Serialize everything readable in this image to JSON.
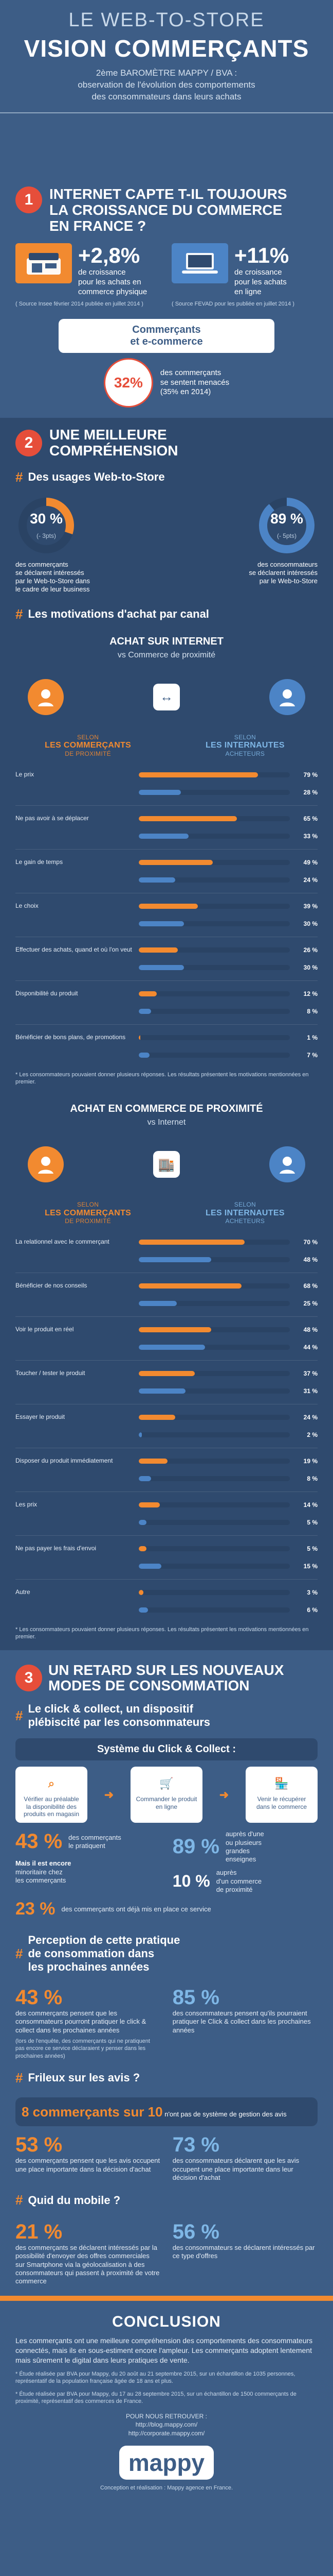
{
  "header": {
    "kicker": "LE WEB-TO-STORE",
    "title": "VISION COMMERÇANTS",
    "subtitle_line1": "2ème BAROMÈTRE MAPPY / BVA :",
    "subtitle_line2": "observation de l'évolution des comportements",
    "subtitle_line3": "des consommateurs dans leurs achats"
  },
  "section1": {
    "number": "1",
    "title_line1": "INTERNET CAPTE T-IL TOUJOURS",
    "title_line2": "LA CROISSANCE DU COMMERCE",
    "title_line3": "EN FRANCE ?",
    "left": {
      "value": "+2,8%",
      "label_line1": "de croissance",
      "label_line2": "pour les achats en",
      "label_line3": "commerce physique",
      "note": "( Source Insee février 2014 publiée en juillet 2014 )"
    },
    "right": {
      "value": "+11%",
      "label_line1": "de croissance",
      "label_line2": "pour les achats",
      "label_line3": "en ligne",
      "note": "( Source FEVAD pour les publiée en juillet 2014 )"
    },
    "callout": {
      "title_line1": "Commerçants",
      "title_line2": "et e-commerce",
      "pct": "32%",
      "text_line1": "des commerçants",
      "text_line2": "se sentent menacés",
      "text_line3": "(35% en 2014)"
    }
  },
  "section2": {
    "number": "2",
    "title_line1": "UNE MEILLEURE",
    "title_line2": "COMPRÉHENSION",
    "web_to_store": {
      "heading": "Des usages Web-to-Store",
      "left_pct": "30 %",
      "left_delta": "(- 3pts)",
      "left_text_line1": "des commerçants",
      "left_text_line2": "se déclarent intéressés",
      "left_text_line3": "par le Web-to-Store dans",
      "left_text_line4": "le cadre de leur business",
      "right_pct": "89 %",
      "right_delta": "(- 5pts)",
      "right_text_line1": "des consommateurs",
      "right_text_line2": "se déclarent intéressés",
      "right_text_line3": "par le Web-to-Store"
    },
    "motivations": {
      "heading": "Les motivations d'achat par canal",
      "block1_title": "ACHAT SUR INTERNET",
      "block1_sub": "vs Commerce de proximité",
      "legend_left_label": "selon",
      "legend_left_title": "LES COMMERÇANTS",
      "legend_left_sub": "DE PROXIMITÉ",
      "legend_right_label": "selon",
      "legend_right_title": "LES INTERNAUTES",
      "legend_right_sub": "ACHETEURS",
      "items1": [
        {
          "label": "Le prix",
          "a": 79,
          "b": 28
        },
        {
          "label": "Ne pas avoir à se déplacer",
          "a": 65,
          "b": 33
        },
        {
          "label": "Le gain de temps",
          "a": 49,
          "b": 24
        },
        {
          "label": "Le choix",
          "a": 39,
          "b": 30
        },
        {
          "label": "Effectuer des achats, quand et où l'on veut",
          "a": 26,
          "b": 30
        },
        {
          "label": "Disponibilité du produit",
          "a": 12,
          "b": 8
        },
        {
          "label": "Bénéficier de bons plans, de promotions",
          "a": 1,
          "b": 7
        }
      ],
      "block1_note": "* Les consommateurs pouvaient donner plusieurs réponses. Les résultats présentent les motivations mentionnées en premier.",
      "block2_title": "ACHAT EN COMMERCE DE PROXIMITÉ",
      "block2_sub": "vs Internet",
      "items2": [
        {
          "label": "La relationnel avec le commerçant",
          "a": 70,
          "b": 48
        },
        {
          "label": "Bénéficier de nos conseils",
          "a": 68,
          "b": 25
        },
        {
          "label": "Voir le produit en réel",
          "a": 48,
          "b": 44
        },
        {
          "label": "Toucher / tester le produit",
          "a": 37,
          "b": 31
        },
        {
          "label": "Essayer le produit",
          "a": 24,
          "b": 2
        },
        {
          "label": "Disposer du produit immédiatement",
          "a": 19,
          "b": 8
        },
        {
          "label": "Les prix",
          "a": 14,
          "b": 5
        },
        {
          "label": "Ne pas payer les frais d'envoi",
          "a": 5,
          "b": 15
        },
        {
          "label": "Autre",
          "a": 3,
          "b": 6
        }
      ],
      "block2_note": "* Les consommateurs pouvaient donner plusieurs réponses. Les résultats présentent les motivations mentionnées en premier."
    }
  },
  "section3": {
    "number": "3",
    "title_line1": "UN RETARD SUR LES NOUVEAUX",
    "title_line2": "MODES DE CONSOMMATION",
    "click_collect": {
      "heading_line1": "Le click & collect, un dispositif",
      "heading_line2": "plébiscité par les consommateurs",
      "system_title": "Système du Click & Collect :",
      "steps": [
        {
          "icon": "magnifier-icon",
          "text": "Vérifier au préalable la disponibilité des produits en magasin"
        },
        {
          "icon": "cart-icon",
          "text": "Commander le produit en ligne"
        },
        {
          "icon": "store-icon",
          "text": "Venir le récupérer dans le commerce"
        }
      ],
      "pct_43": "43 %",
      "pct_43_text_line1": "des commerçants",
      "pct_43_text_line2": "le pratiquent",
      "pct_89": "89 %",
      "pct_89_text_line1": "auprès d'une",
      "pct_89_text_line2": "ou plusieurs",
      "pct_89_text_line3": "grandes",
      "pct_89_text_line4": "enseignes",
      "pct_10": "10 %",
      "pct_10_text_line1": "auprès",
      "pct_10_text_line2": "d'un commerce",
      "pct_10_text_line3": "de proximité",
      "pct_23": "23 %",
      "pct_23_text": "des commerçants ont déjà mis en place ce service",
      "left_text_line1": "Mais il est encore",
      "left_text_line2": "minoritaire chez",
      "left_text_line3": "les commerçants"
    },
    "perception": {
      "heading_line1": "Perception de cette pratique",
      "heading_line2": "de consommation dans",
      "heading_line3": "les prochaines années",
      "left_pct": "43 %",
      "left_text": "des commerçants pensent que les consommateurs pourront pratiquer le click & collect dans les prochaines années",
      "left_note": "(lors de l'enquête, des commerçants qui ne pratiquent pas encore ce service déclaraient y penser dans les prochaines années)",
      "right_pct": "85 %",
      "right_text": "des consommateurs pensent qu'ils pourraient pratiquer le Click & collect dans les prochaines années"
    },
    "avis": {
      "heading": "Frileux sur les avis ?",
      "value": "8 commerçants sur 10",
      "value_rest": "n'ont pas de système de gestion des avis",
      "left_pct": "53 %",
      "left_text": "des commerçants pensent que les avis occupent une place importante dans la décision d'achat",
      "right_pct": "73 %",
      "right_text": "des consommateurs déclarent que les avis occupent une place importante dans leur décision d'achat"
    },
    "mobile": {
      "heading": "Quid du mobile ?",
      "left_pct": "21 %",
      "left_text": "des commerçants se déclarent intéressés par la possibilité d'envoyer des offres commerciales sur Smartphone via la géolocalisation à des consommateurs qui passent à proximité de votre commerce",
      "right_pct": "56 %",
      "right_text": "des consommateurs se déclarent intéressés par ce type d'offres"
    }
  },
  "conclusion": {
    "title": "CONCLUSION",
    "text": "Les commerçants ont une meilleure compréhension des comportements des consommateurs connectés, mais ils en sous-estiment encore l'ampleur. Les commerçants adoptent lentement mais sûrement le digital dans leurs pratiques de vente.",
    "footnote1": "* Étude réalisée par BVA pour Mappy, du 20 août au 21 septembre 2015, sur un échantillon de 1035 personnes, représentatif de la population française âgée de 18 ans et plus.",
    "footnote2": "* Étude réalisée par BVA pour Mappy, du 17 au 28 septembre 2015, sur un échantillon de 1500 commerçants de proximité, représentatif des commerces de France.",
    "follow": "POUR NOUS RETROUVER :",
    "link1": "http://blog.mappy.com/",
    "link2": "http://corporate.mappy.com/",
    "logo": "mappy",
    "credits": "Conception et réalisation : Mappy agence en France."
  }
}
